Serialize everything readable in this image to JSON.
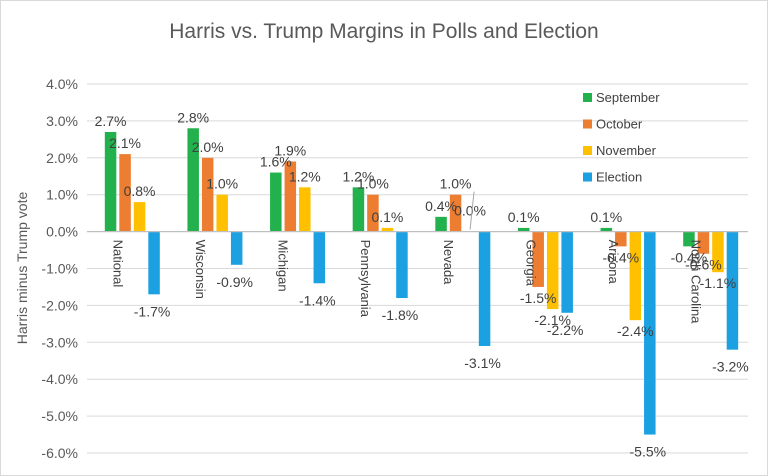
{
  "chart_data": {
    "type": "bar",
    "title": "Harris vs. Trump Margins in Polls and Election",
    "xlabel": "",
    "ylabel": "Harris minus Trump vote",
    "ylim": [
      -6.0,
      4.0
    ],
    "ytick_step": 1.0,
    "yticks": [
      "4.0%",
      "3.0%",
      "2.0%",
      "1.0%",
      "0.0%",
      "-1.0%",
      "-2.0%",
      "-3.0%",
      "-4.0%",
      "-5.0%",
      "-6.0%"
    ],
    "grid": true,
    "legend_position": "top-right",
    "categories": [
      "National",
      "Wisconsin",
      "Michigan",
      "Pennsylvania",
      "Nevada",
      "Georgia",
      "Arizona",
      "North Carolina"
    ],
    "series": [
      {
        "name": "September",
        "color": "#22b14c",
        "values": [
          2.7,
          2.8,
          1.6,
          1.2,
          0.4,
          0.1,
          0.1,
          -0.4
        ],
        "labels": [
          "2.7%",
          "2.8%",
          "1.6%",
          "1.2%",
          "0.4%",
          "0.1%",
          "0.1%",
          "-0.4%"
        ]
      },
      {
        "name": "October",
        "color": "#ed7d31",
        "values": [
          2.1,
          2.0,
          1.9,
          1.0,
          1.0,
          -1.5,
          -0.4,
          -0.6
        ],
        "labels": [
          "2.1%",
          "2.0%",
          "1.9%",
          "1.0%",
          "1.0%",
          "-1.5%",
          "-0.4%",
          "-0.6%"
        ]
      },
      {
        "name": "November",
        "color": "#ffc000",
        "values": [
          0.8,
          1.0,
          1.2,
          0.1,
          0.0,
          -2.1,
          -2.4,
          -1.1
        ],
        "labels": [
          "0.8%",
          "1.0%",
          "1.2%",
          "0.1%",
          "0.0%",
          "-2.1%",
          "-2.4%",
          "-1.1%"
        ]
      },
      {
        "name": "Election",
        "color": "#1ba1e2",
        "values": [
          -1.7,
          -0.9,
          -1.4,
          -1.8,
          -3.1,
          -2.2,
          -5.5,
          -3.2
        ],
        "labels": [
          "-1.7%",
          "-0.9%",
          "-1.4%",
          "-1.8%",
          "-3.1%",
          "-2.2%",
          "-5.5%",
          "-3.2%"
        ]
      }
    ]
  }
}
